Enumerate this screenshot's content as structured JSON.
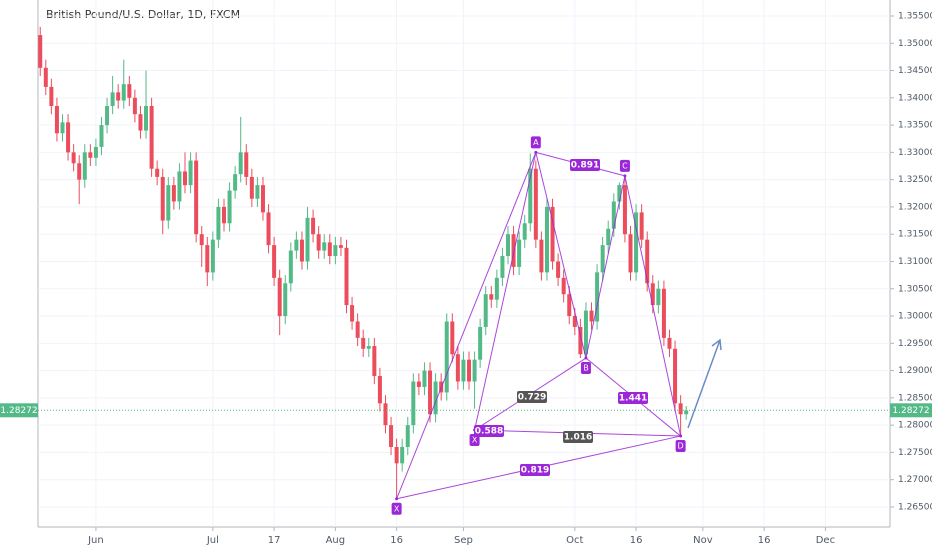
{
  "chart_data": {
    "type": "candlestick",
    "title": "British Pound/U.S. Dollar, 1D, FXCM",
    "up_color": "#53b987",
    "down_color": "#eb4d5c",
    "grid": true,
    "last_price": 1.28272,
    "last_color": "#53b987",
    "x": [
      0,
      1,
      2,
      3,
      4,
      5,
      6,
      7,
      8,
      9,
      10,
      11,
      12,
      13,
      14,
      15,
      16,
      17,
      18,
      19,
      20,
      21,
      22,
      23,
      24,
      25,
      26,
      27,
      28,
      29,
      30,
      31,
      32,
      33,
      34,
      35,
      36,
      37,
      38,
      39,
      40,
      41,
      42,
      43,
      44,
      45,
      46,
      47,
      48,
      49,
      50,
      51,
      52,
      53,
      54,
      55,
      56,
      57,
      58,
      59,
      60,
      61,
      62,
      63,
      64,
      65,
      66,
      67,
      68,
      69,
      70,
      71,
      72,
      73,
      74,
      75,
      76,
      77,
      78,
      79,
      80,
      81,
      82,
      83,
      84,
      85,
      86,
      87,
      88,
      89,
      90,
      91,
      92,
      93,
      94,
      95,
      96,
      97,
      98,
      99,
      100,
      101,
      102,
      103,
      104,
      105,
      106,
      107,
      108,
      109,
      110,
      111,
      112,
      113,
      114,
      115,
      116
    ],
    "open": [
      1.3515,
      1.3455,
      1.342,
      1.3385,
      1.3335,
      1.3355,
      1.33,
      1.328,
      1.325,
      1.33,
      1.329,
      1.331,
      1.335,
      1.3385,
      1.341,
      1.3395,
      1.3425,
      1.34,
      1.337,
      1.334,
      1.3385,
      1.327,
      1.3255,
      1.3175,
      1.324,
      1.321,
      1.3265,
      1.324,
      1.3285,
      1.315,
      1.313,
      1.308,
      1.314,
      1.32,
      1.317,
      1.323,
      1.326,
      1.33,
      1.3255,
      1.3215,
      1.324,
      1.319,
      1.313,
      1.307,
      1.3,
      1.306,
      1.312,
      1.314,
      1.31,
      1.318,
      1.315,
      1.312,
      1.3135,
      1.311,
      1.313,
      1.3125,
      1.302,
      1.299,
      1.296,
      1.294,
      1.2945,
      1.289,
      1.284,
      1.28,
      1.276,
      1.273,
      1.276,
      1.28,
      1.288,
      1.287,
      1.29,
      1.282,
      1.288,
      1.286,
      1.299,
      1.293,
      1.288,
      1.292,
      1.288,
      1.292,
      1.298,
      1.304,
      1.303,
      1.307,
      1.311,
      1.315,
      1.309,
      1.314,
      1.317,
      1.327,
      1.314,
      1.308,
      1.32,
      1.31,
      1.307,
      1.304,
      1.3,
      1.298,
      1.293,
      1.301,
      1.299,
      1.308,
      1.313,
      1.316,
      1.321,
      1.324,
      1.315,
      1.308,
      1.319,
      1.314,
      1.306,
      1.302,
      1.305,
      1.296,
      1.294,
      1.284,
      1.282
    ],
    "high": [
      1.353,
      1.347,
      1.3435,
      1.34,
      1.337,
      1.337,
      1.3315,
      1.3295,
      1.3315,
      1.3315,
      1.3325,
      1.3365,
      1.34,
      1.344,
      1.3425,
      1.347,
      1.344,
      1.3415,
      1.3385,
      1.345,
      1.34,
      1.3285,
      1.327,
      1.3255,
      1.3255,
      1.328,
      1.33,
      1.33,
      1.33,
      1.3165,
      1.3145,
      1.3155,
      1.3215,
      1.3215,
      1.3245,
      1.3275,
      1.3365,
      1.3315,
      1.327,
      1.3255,
      1.3255,
      1.3205,
      1.3145,
      1.3085,
      1.3075,
      1.3135,
      1.3155,
      1.3155,
      1.32,
      1.3195,
      1.3165,
      1.315,
      1.315,
      1.3145,
      1.3145,
      1.314,
      1.3035,
      1.3005,
      1.2975,
      1.296,
      1.296,
      1.2905,
      1.2855,
      1.2815,
      1.2775,
      1.2775,
      1.2815,
      1.2895,
      1.2895,
      1.2915,
      1.2915,
      1.2895,
      1.2895,
      1.3005,
      1.3005,
      1.2945,
      1.2935,
      1.2935,
      1.2935,
      1.2995,
      1.3055,
      1.3055,
      1.3085,
      1.3125,
      1.3165,
      1.3165,
      1.3155,
      1.3185,
      1.3298,
      1.3285,
      1.3155,
      1.3215,
      1.3215,
      1.3115,
      1.3085,
      1.3055,
      1.3015,
      1.2995,
      1.3025,
      1.3025,
      1.3095,
      1.3145,
      1.3175,
      1.3225,
      1.3245,
      1.3257,
      1.3165,
      1.3205,
      1.3205,
      1.3155,
      1.3075,
      1.3065,
      1.3065,
      1.2975,
      1.2955,
      1.2855,
      1.2835
    ],
    "low": [
      1.344,
      1.3405,
      1.337,
      1.332,
      1.332,
      1.3285,
      1.3265,
      1.3205,
      1.3235,
      1.3275,
      1.3275,
      1.3295,
      1.3335,
      1.337,
      1.338,
      1.338,
      1.3385,
      1.3355,
      1.3325,
      1.3325,
      1.3255,
      1.324,
      1.315,
      1.316,
      1.3195,
      1.3195,
      1.3225,
      1.3225,
      1.3135,
      1.309,
      1.3055,
      1.3065,
      1.3125,
      1.3155,
      1.3155,
      1.3215,
      1.3245,
      1.324,
      1.32,
      1.32,
      1.3175,
      1.3115,
      1.3055,
      1.2965,
      1.2985,
      1.3045,
      1.3105,
      1.3085,
      1.3085,
      1.3135,
      1.3105,
      1.3105,
      1.3095,
      1.3095,
      1.311,
      1.3005,
      1.2975,
      1.2945,
      1.2925,
      1.2925,
      1.2875,
      1.2825,
      1.2785,
      1.2745,
      1.2663,
      1.2715,
      1.2745,
      1.2785,
      1.2855,
      1.2855,
      1.2805,
      1.2805,
      1.2845,
      1.2845,
      1.2915,
      1.2865,
      1.2865,
      1.2865,
      1.283,
      1.2905,
      1.2965,
      1.3015,
      1.3015,
      1.3055,
      1.3095,
      1.3075,
      1.3075,
      1.3125,
      1.3155,
      1.3125,
      1.3065,
      1.3065,
      1.3085,
      1.3055,
      1.3025,
      1.2985,
      1.2965,
      1.2923,
      1.2923,
      1.2975,
      1.2975,
      1.3065,
      1.3115,
      1.3145,
      1.3195,
      1.3135,
      1.3065,
      1.3065,
      1.3125,
      1.3045,
      1.3005,
      1.3005,
      1.2945,
      1.2925,
      1.2825,
      1.278,
      1.281
    ],
    "close": [
      1.3455,
      1.342,
      1.3385,
      1.3335,
      1.3355,
      1.33,
      1.328,
      1.325,
      1.33,
      1.329,
      1.331,
      1.335,
      1.3385,
      1.341,
      1.3395,
      1.3425,
      1.34,
      1.337,
      1.334,
      1.3385,
      1.327,
      1.3255,
      1.3175,
      1.324,
      1.321,
      1.3265,
      1.324,
      1.3285,
      1.315,
      1.313,
      1.308,
      1.314,
      1.32,
      1.317,
      1.323,
      1.326,
      1.33,
      1.3255,
      1.3215,
      1.324,
      1.319,
      1.313,
      1.307,
      1.3,
      1.306,
      1.312,
      1.314,
      1.31,
      1.318,
      1.315,
      1.312,
      1.3135,
      1.311,
      1.313,
      1.3125,
      1.302,
      1.299,
      1.296,
      1.294,
      1.2945,
      1.289,
      1.284,
      1.28,
      1.276,
      1.273,
      1.276,
      1.28,
      1.288,
      1.287,
      1.29,
      1.282,
      1.288,
      1.286,
      1.299,
      1.293,
      1.288,
      1.292,
      1.288,
      1.292,
      1.298,
      1.304,
      1.303,
      1.307,
      1.311,
      1.315,
      1.309,
      1.314,
      1.317,
      1.327,
      1.314,
      1.308,
      1.32,
      1.31,
      1.307,
      1.304,
      1.3,
      1.298,
      1.293,
      1.301,
      1.299,
      1.308,
      1.313,
      1.316,
      1.321,
      1.324,
      1.315,
      1.308,
      1.319,
      1.314,
      1.306,
      1.302,
      1.305,
      1.296,
      1.294,
      1.284,
      1.282,
      1.2827
    ],
    "xlim": [
      -0.4,
      152.6
    ],
    "xticks": [
      {
        "value": 10,
        "label": "Jun"
      },
      {
        "value": 31,
        "label": "Jul"
      },
      {
        "value": 42,
        "label": "17"
      },
      {
        "value": 53,
        "label": "Aug"
      },
      {
        "value": 64,
        "label": "16"
      },
      {
        "value": 76,
        "label": "Sep"
      },
      {
        "value": 96,
        "label": "Oct"
      },
      {
        "value": 107,
        "label": "16"
      },
      {
        "value": 119,
        "label": "Nov"
      },
      {
        "value": 130,
        "label": "16"
      },
      {
        "value": 141,
        "label": "Dec"
      }
    ],
    "ylim": [
      1.26133,
      1.35793
    ],
    "yticks": [
      {
        "value": 1.265,
        "label": "1.26500"
      },
      {
        "value": 1.27,
        "label": "1.27000"
      },
      {
        "value": 1.275,
        "label": "1.27500"
      },
      {
        "value": 1.28,
        "label": "1.28000"
      },
      {
        "value": 1.285,
        "label": "1.28500"
      },
      {
        "value": 1.29,
        "label": "1.29000"
      },
      {
        "value": 1.295,
        "label": "1.29500"
      },
      {
        "value": 1.3,
        "label": "1.30000"
      },
      {
        "value": 1.305,
        "label": "1.30500"
      },
      {
        "value": 1.31,
        "label": "1.31000"
      },
      {
        "value": 1.315,
        "label": "1.31500"
      },
      {
        "value": 1.32,
        "label": "1.32000"
      },
      {
        "value": 1.325,
        "label": "1.32500"
      },
      {
        "value": 1.33,
        "label": "1.33000"
      },
      {
        "value": 1.335,
        "label": "1.33500"
      },
      {
        "value": 1.34,
        "label": "1.34000"
      },
      {
        "value": 1.345,
        "label": "1.34500"
      },
      {
        "value": 1.35,
        "label": "1.35000"
      },
      {
        "value": 1.355,
        "label": "1.35500"
      }
    ],
    "pattern": {
      "color": "#9c27d6",
      "points": [
        {
          "label": "X",
          "x": 64,
          "y": 1.2665
        },
        {
          "label": "X",
          "x": 78,
          "y": 1.2791
        },
        {
          "label": "A",
          "x": 89,
          "y": 1.33
        },
        {
          "label": "B",
          "x": 98,
          "y": 1.2923
        },
        {
          "label": "C",
          "x": 105,
          "y": 1.3257
        },
        {
          "label": "D",
          "x": 115,
          "y": 1.278
        }
      ],
      "ratios": [
        0.891,
        0.729,
        0.588,
        1.016,
        1.441,
        0.819
      ]
    }
  }
}
